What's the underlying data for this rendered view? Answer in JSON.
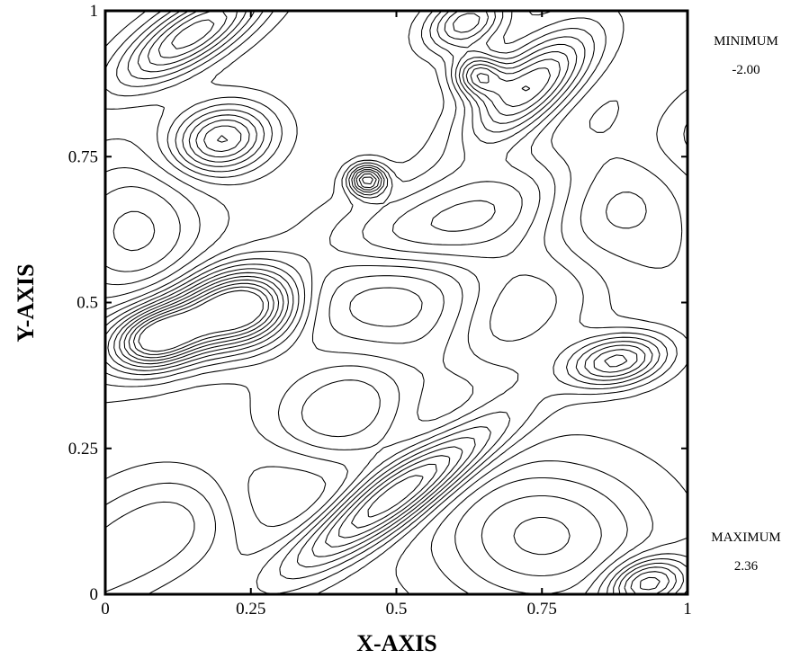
{
  "chart_data": {
    "type": "contour",
    "xlabel": "X-AXIS",
    "ylabel": "Y-AXIS",
    "xlim": [
      0,
      1
    ],
    "ylim": [
      0,
      1
    ],
    "x_ticks": [
      0,
      0.25,
      0.5,
      0.75,
      1
    ],
    "y_ticks": [
      0,
      0.25,
      0.5,
      0.75,
      1
    ],
    "x_tick_labels": [
      "0",
      "0.25",
      "0.5",
      "0.75",
      "1"
    ],
    "y_tick_labels": [
      "0",
      "0.25",
      "0.5",
      "0.75",
      "1"
    ],
    "minimum_label": "MINIMUM",
    "minimum_value": "-2.00",
    "maximum_label": "MAXIMUM",
    "maximum_value": "2.36",
    "grid": false,
    "line_color": "#000000",
    "features": [
      {
        "name": "peak",
        "x": 0.2,
        "y": 0.78,
        "sx": 0.06,
        "sy": 0.04,
        "amp": 1.6,
        "theta": 0.2
      },
      {
        "name": "peak",
        "x": 0.15,
        "y": 0.96,
        "sx": 0.1,
        "sy": 0.035,
        "amp": 1.7,
        "theta": 0.55
      },
      {
        "name": "ridge",
        "x": 0.62,
        "y": 0.98,
        "sx": 0.05,
        "sy": 0.03,
        "amp": 1.3,
        "theta": 0.4
      },
      {
        "name": "peak",
        "x": 0.64,
        "y": 0.89,
        "sx": 0.03,
        "sy": 0.025,
        "amp": 1.5,
        "theta": 0.0
      },
      {
        "name": "peak",
        "x": 0.73,
        "y": 0.87,
        "sx": 0.09,
        "sy": 0.04,
        "amp": 1.8,
        "theta": 0.7
      },
      {
        "name": "peak",
        "x": 0.45,
        "y": 0.71,
        "sx": 0.022,
        "sy": 0.018,
        "amp": 1.8,
        "theta": 0.0
      },
      {
        "name": "band",
        "x": 0.55,
        "y": 0.62,
        "sx": 0.42,
        "sy": 0.06,
        "amp": 1.1,
        "theta": 0.35
      },
      {
        "name": "peak",
        "x": 0.09,
        "y": 0.44,
        "sx": 0.055,
        "sy": 0.035,
        "amp": 2.0,
        "theta": 0.3
      },
      {
        "name": "peak",
        "x": 0.23,
        "y": 0.49,
        "sx": 0.07,
        "sy": 0.045,
        "amp": 2.2,
        "theta": 0.2
      },
      {
        "name": "peak",
        "x": 0.88,
        "y": 0.4,
        "sx": 0.06,
        "sy": 0.03,
        "amp": 1.6,
        "theta": 0.2
      },
      {
        "name": "peak",
        "x": 0.5,
        "y": 0.17,
        "sx": 0.15,
        "sy": 0.035,
        "amp": 2.1,
        "theta": 0.6
      },
      {
        "name": "band",
        "x": 0.4,
        "y": 0.3,
        "sx": 0.55,
        "sy": 0.07,
        "amp": 1.0,
        "theta": 0.55
      },
      {
        "name": "peak",
        "x": 0.93,
        "y": 0.02,
        "sx": 0.05,
        "sy": 0.03,
        "amp": 1.5,
        "theta": 0.2
      },
      {
        "name": "trough",
        "x": 0.4,
        "y": 0.53,
        "sx": 0.12,
        "sy": 0.06,
        "amp": -1.0,
        "theta": 0.0
      },
      {
        "name": "trough",
        "x": 0.88,
        "y": 0.68,
        "sx": 0.1,
        "sy": 0.1,
        "amp": -1.2,
        "theta": 0.0
      },
      {
        "name": "trough",
        "x": 0.28,
        "y": 0.2,
        "sx": 0.1,
        "sy": 0.07,
        "amp": -1.1,
        "theta": 0.0
      },
      {
        "name": "trough",
        "x": 0.75,
        "y": 0.1,
        "sx": 0.12,
        "sy": 0.08,
        "amp": -1.3,
        "theta": 0.0
      },
      {
        "name": "trough",
        "x": 0.05,
        "y": 0.62,
        "sx": 0.08,
        "sy": 0.08,
        "amp": -1.0,
        "theta": 0.0
      },
      {
        "name": "trough",
        "x": 0.55,
        "y": 0.4,
        "sx": 0.08,
        "sy": 0.1,
        "amp": -0.8,
        "theta": 0.0
      }
    ],
    "contour_levels": [
      -1.8,
      -1.5,
      -1.2,
      -0.9,
      -0.6,
      -0.35,
      -0.1,
      0.15,
      0.35,
      0.55,
      0.75,
      0.95,
      1.15,
      1.35,
      1.55,
      1.75,
      1.95,
      2.15
    ]
  }
}
